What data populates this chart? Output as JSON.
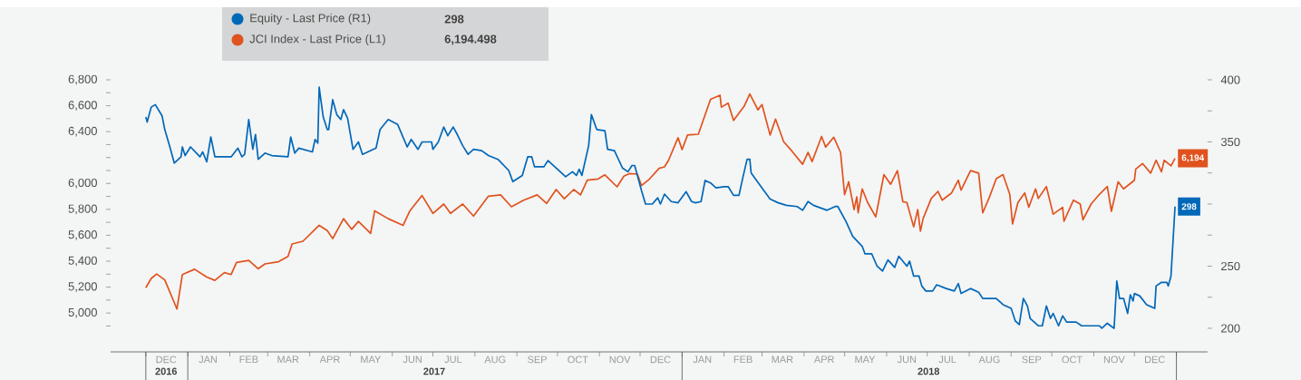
{
  "chart_data": {
    "type": "line",
    "xlim": [
      "2016-11-05",
      "2019-01-24"
    ],
    "xticks": [
      {
        "value": "2016-12-01",
        "label": null
      },
      {
        "value": "2017-01-01",
        "label": null
      },
      {
        "value": "2017-02-01",
        "label": null
      },
      {
        "value": "2017-03-01",
        "label": null
      },
      {
        "value": "2017-04-01",
        "label": null
      },
      {
        "value": "2017-05-01",
        "label": null
      },
      {
        "value": "2017-06-01",
        "label": null
      },
      {
        "value": "2017-07-01",
        "label": null
      },
      {
        "value": "2017-08-01",
        "label": null
      },
      {
        "value": "2017-09-01",
        "label": null
      },
      {
        "value": "2017-10-01",
        "label": null
      },
      {
        "value": "2017-11-01",
        "label": null
      },
      {
        "value": "2017-12-01",
        "label": null
      },
      {
        "value": "2018-01-01",
        "label": null
      },
      {
        "value": "2018-02-01",
        "label": null
      },
      {
        "value": "2018-03-01",
        "label": null
      },
      {
        "value": "2018-04-01",
        "label": null
      },
      {
        "value": "2018-05-01",
        "label": null
      },
      {
        "value": "2018-06-01",
        "label": null
      },
      {
        "value": "2018-07-01",
        "label": null
      },
      {
        "value": "2018-08-01",
        "label": null
      },
      {
        "value": "2018-09-01",
        "label": null
      },
      {
        "value": "2018-10-01",
        "label": null
      },
      {
        "value": "2018-11-01",
        "label": null
      },
      {
        "value": "2018-12-01",
        "label": null
      },
      {
        "value": "2019-01-01",
        "label": null
      },
      {
        "value": "2016-12-16",
        "label": "DEC"
      },
      {
        "value": "2017-01-16",
        "label": "JAN"
      },
      {
        "value": "2017-02-15",
        "label": "FEB"
      },
      {
        "value": "2017-03-16",
        "label": "MAR"
      },
      {
        "value": "2017-04-16",
        "label": "APR"
      },
      {
        "value": "2017-05-16",
        "label": "MAY"
      },
      {
        "value": "2017-06-16",
        "label": "JUN"
      },
      {
        "value": "2017-07-16",
        "label": "JUL"
      },
      {
        "value": "2017-08-16",
        "label": "AUG"
      },
      {
        "value": "2017-09-16",
        "label": "SEP"
      },
      {
        "value": "2017-10-16",
        "label": "OCT"
      },
      {
        "value": "2017-11-16",
        "label": "NOV"
      },
      {
        "value": "2017-12-16",
        "label": "DEC"
      },
      {
        "value": "2018-01-16",
        "label": "JAN"
      },
      {
        "value": "2018-02-15",
        "label": "FEB"
      },
      {
        "value": "2018-03-16",
        "label": "MAR"
      },
      {
        "value": "2018-04-16",
        "label": "APR"
      },
      {
        "value": "2018-05-16",
        "label": "MAY"
      },
      {
        "value": "2018-06-16",
        "label": "JUN"
      },
      {
        "value": "2018-07-16",
        "label": "JUL"
      },
      {
        "value": "2018-08-16",
        "label": "AUG"
      },
      {
        "value": "2018-09-16",
        "label": "SEP"
      },
      {
        "value": "2018-10-16",
        "label": "OCT"
      },
      {
        "value": "2018-11-16",
        "label": "NOV"
      },
      {
        "value": "2018-12-16",
        "label": "DEC"
      }
    ],
    "x2lim": [
      "2016-11-05",
      "2019-01-24"
    ],
    "x2ticks": [
      {
        "value": "2016-12-01",
        "label": null
      },
      {
        "value": "2017-01-01",
        "label": null
      },
      {
        "value": "2018-01-01",
        "label": null
      },
      {
        "value": "2019-01-01",
        "label": null
      },
      {
        "value": "2016-12-16",
        "label": "2016"
      },
      {
        "value": "2017-07-02",
        "label": "2017"
      },
      {
        "value": "2018-07-02",
        "label": "2018"
      }
    ],
    "ylim": [
      4700,
      6800
    ],
    "yticks": [
      {
        "value": 4900,
        "label": null
      },
      {
        "value": 5000,
        "label": "5,000"
      },
      {
        "value": 5100,
        "label": null
      },
      {
        "value": 5200,
        "label": "5,200"
      },
      {
        "value": 5300,
        "label": null
      },
      {
        "value": 5400,
        "label": "5,400"
      },
      {
        "value": 5500,
        "label": null
      },
      {
        "value": 5600,
        "label": "5,600"
      },
      {
        "value": 5700,
        "label": null
      },
      {
        "value": 5800,
        "label": "5,800"
      },
      {
        "value": 5900,
        "label": null
      },
      {
        "value": 6000,
        "label": "6,000"
      },
      {
        "value": 6100,
        "label": null
      },
      {
        "value": 6200,
        "label": null
      },
      {
        "value": 6300,
        "label": null
      },
      {
        "value": 6400,
        "label": "6,400"
      },
      {
        "value": 6500,
        "label": null
      },
      {
        "value": 6600,
        "label": "6,600"
      },
      {
        "value": 6700,
        "label": null
      },
      {
        "value": 6800,
        "label": "6,800"
      }
    ],
    "y2lim": [
      181,
      400
    ],
    "y2ticks": [
      200,
      {
        "value": 225,
        "label": null
      },
      250,
      {
        "value": 275,
        "label": null
      },
      {
        "value": 300,
        "label": null
      },
      {
        "value": 325,
        "label": null
      },
      350,
      {
        "value": 375,
        "label": null
      },
      400
    ],
    "legend": "top left",
    "marker": "none",
    "line_style": "solid",
    "grid": false,
    "annotations": [
      "298",
      "6,194.498"
    ],
    "series": [
      {
        "name": "Equity - Last Price (R1)",
        "color": "#0068b8",
        "axis": "y2",
        "x": [
          "2016-12-01",
          "2016-12-02",
          "2016-12-05",
          "2016-12-08",
          "2016-12-13",
          "2016-12-15",
          "2016-12-19",
          "2016-12-22",
          "2016-12-27",
          "2016-12-28",
          "2016-12-30",
          "2017-01-03",
          "2017-01-10",
          "2017-01-12",
          "2017-01-15",
          "2017-01-18",
          "2017-01-21",
          "2017-02-02",
          "2017-02-07",
          "2017-02-10",
          "2017-02-12",
          "2017-02-15",
          "2017-02-18",
          "2017-02-20",
          "2017-02-22",
          "2017-02-27",
          "2017-03-04",
          "2017-03-16",
          "2017-03-18",
          "2017-03-21",
          "2017-03-24",
          "2017-04-03",
          "2017-04-05",
          "2017-04-07",
          "2017-04-08",
          "2017-04-11",
          "2017-04-14",
          "2017-04-15",
          "2017-04-18",
          "2017-04-21",
          "2017-04-24",
          "2017-04-26",
          "2017-04-29",
          "2017-05-03",
          "2017-05-07",
          "2017-05-10",
          "2017-05-20",
          "2017-05-23",
          "2017-05-29",
          "2017-06-05",
          "2017-06-12",
          "2017-06-15",
          "2017-06-20",
          "2017-06-23",
          "2017-06-30",
          "2017-07-01",
          "2017-07-05",
          "2017-07-09",
          "2017-07-12",
          "2017-07-16",
          "2017-07-19",
          "2017-07-23",
          "2017-07-27",
          "2017-07-31",
          "2017-08-06",
          "2017-08-11",
          "2017-08-18",
          "2017-08-26",
          "2017-08-29",
          "2017-09-05",
          "2017-09-09",
          "2017-09-12",
          "2017-09-14",
          "2017-09-21",
          "2017-09-24",
          "2017-09-29",
          "2017-10-07",
          "2017-10-12",
          "2017-10-15",
          "2017-10-17",
          "2017-10-19",
          "2017-10-24",
          "2017-10-26",
          "2017-10-30",
          "2017-11-05",
          "2017-11-07",
          "2017-11-12",
          "2017-11-18",
          "2017-11-22",
          "2017-11-25",
          "2017-11-27",
          "2017-12-02",
          "2017-12-05",
          "2017-12-10",
          "2017-12-14",
          "2017-12-16",
          "2017-12-19",
          "2017-12-24",
          "2017-12-29",
          "2018-01-04",
          "2018-01-08",
          "2018-01-11",
          "2018-01-15",
          "2018-01-18",
          "2018-01-22",
          "2018-01-26",
          "2018-02-01",
          "2018-02-04",
          "2018-02-08",
          "2018-02-12",
          "2018-02-15",
          "2018-02-18",
          "2018-02-20",
          "2018-02-21",
          "2018-02-25",
          "2018-03-01",
          "2018-03-07",
          "2018-03-13",
          "2018-03-19",
          "2018-03-27",
          "2018-03-31",
          "2018-04-04",
          "2018-04-08",
          "2018-04-18",
          "2018-04-24",
          "2018-04-26",
          "2018-05-02",
          "2018-05-07",
          "2018-05-14",
          "2018-05-16",
          "2018-05-21",
          "2018-05-25",
          "2018-05-29",
          "2018-06-02",
          "2018-06-07",
          "2018-06-10",
          "2018-06-16",
          "2018-06-18",
          "2018-06-21",
          "2018-06-25",
          "2018-06-27",
          "2018-06-30",
          "2018-07-05",
          "2018-07-08",
          "2018-07-15",
          "2018-07-21",
          "2018-07-24",
          "2018-07-26",
          "2018-08-02",
          "2018-08-08",
          "2018-08-11",
          "2018-08-21",
          "2018-08-26",
          "2018-09-01",
          "2018-09-04",
          "2018-09-07",
          "2018-09-10",
          "2018-09-13",
          "2018-09-15",
          "2018-09-21",
          "2018-09-24",
          "2018-09-27",
          "2018-09-30",
          "2018-10-02",
          "2018-10-06",
          "2018-10-09",
          "2018-10-12",
          "2018-10-19",
          "2018-10-23",
          "2018-11-05",
          "2018-11-07",
          "2018-11-11",
          "2018-11-16",
          "2018-11-18",
          "2018-11-20",
          "2018-11-23",
          "2018-11-26",
          "2018-11-28",
          "2018-11-30",
          "2018-12-01",
          "2018-12-05",
          "2018-12-10",
          "2018-12-16",
          "2018-12-17",
          "2018-12-21",
          "2018-12-25",
          "2018-12-26",
          "2018-12-28",
          "2018-12-31"
        ],
        "values": [
          370,
          366,
          378,
          380,
          371,
          360,
          345,
          333,
          338,
          346,
          339,
          346,
          338,
          342,
          334,
          354,
          338,
          338,
          345,
          338,
          340,
          368,
          344,
          356,
          336,
          341,
          339,
          338,
          354,
          341,
          345,
          342,
          352,
          349,
          394,
          370,
          360,
          360,
          384,
          372,
          368,
          376,
          369,
          344,
          350,
          340,
          345,
          360,
          368,
          364,
          346,
          352,
          344,
          350,
          350,
          344,
          350,
          362,
          355,
          362,
          356,
          347,
          340,
          344,
          343,
          339,
          336,
          327,
          318,
          323,
          338,
          338,
          330,
          330,
          335,
          330,
          322,
          326,
          323,
          328,
          323,
          347,
          372,
          360,
          359,
          344,
          343,
          329,
          326,
          331,
          331,
          311,
          300,
          300,
          305,
          300,
          308,
          302,
          301,
          310,
          302,
          301,
          302,
          319,
          317,
          313,
          314,
          314,
          307,
          307,
          322,
          336,
          336,
          325,
          319,
          313,
          304,
          301,
          299,
          298,
          295,
          302,
          299,
          295,
          298,
          298,
          286,
          274,
          266,
          260,
          260,
          250,
          246,
          255,
          249,
          258,
          250,
          254,
          242,
          242,
          234,
          230,
          230,
          235,
          232,
          230,
          236,
          228,
          232,
          229,
          224,
          224,
          219,
          216,
          206,
          203,
          224,
          218,
          208,
          202,
          202,
          218,
          208,
          212,
          202,
          210,
          205,
          205,
          202,
          202,
          200,
          204,
          200,
          238,
          224,
          224,
          212,
          227,
          222,
          228,
          226,
          219,
          216,
          234,
          237,
          237,
          234,
          242,
          298
        ],
        "value_labels": [
          null,
          null,
          null,
          null,
          null,
          null,
          null,
          null,
          null,
          null,
          null,
          null,
          null,
          null,
          null,
          null,
          null,
          null,
          null,
          null,
          null,
          null,
          null,
          null,
          null,
          null,
          null,
          null,
          null,
          null,
          null,
          null,
          null,
          null,
          null,
          null,
          null,
          null,
          null,
          null,
          null,
          null,
          null,
          null,
          null,
          null,
          null,
          null,
          null,
          null,
          null,
          null,
          null,
          null,
          null,
          null,
          null,
          null,
          null,
          null,
          null,
          null,
          null,
          null,
          null,
          null,
          null,
          null,
          null,
          null,
          null,
          null,
          null,
          null,
          null,
          null,
          null,
          null,
          null,
          null,
          null,
          null,
          null,
          null,
          null,
          null,
          null,
          null,
          null,
          null,
          null,
          null,
          null,
          null,
          null,
          null,
          null,
          null,
          null,
          null,
          null,
          null,
          null,
          null,
          null,
          null,
          null,
          null,
          null,
          null,
          null,
          null,
          null,
          null,
          null,
          null,
          null,
          null,
          null,
          null,
          null,
          null,
          null,
          null,
          null,
          null,
          null,
          null,
          null,
          null,
          null,
          null,
          null,
          null,
          null,
          null,
          null,
          null,
          null,
          null,
          null,
          null,
          null,
          null,
          null,
          null,
          null,
          null,
          null,
          null,
          null,
          null,
          null,
          null,
          null,
          null,
          null,
          null,
          null,
          null,
          null,
          null,
          null,
          null,
          null,
          null,
          null,
          null,
          null,
          null,
          null,
          null,
          null,
          null,
          null,
          null,
          null,
          null,
          null,
          null,
          null,
          null,
          null,
          null,
          null,
          null,
          null,
          null,
          "298"
        ]
      },
      {
        "name": "JCI Index - Last Price (L1)",
        "color": "#e0531f",
        "x": [
          "2016-12-01",
          "2016-12-05",
          "2016-12-09",
          "2016-12-15",
          "2016-12-24",
          "2016-12-28",
          "2017-01-06",
          "2017-01-15",
          "2017-01-21",
          "2017-01-28",
          "2017-02-02",
          "2017-02-06",
          "2017-02-15",
          "2017-02-22",
          "2017-02-27",
          "2017-03-09",
          "2017-03-16",
          "2017-03-19",
          "2017-03-27",
          "2017-04-08",
          "2017-04-14",
          "2017-04-18",
          "2017-04-26",
          "2017-05-02",
          "2017-05-07",
          "2017-05-16",
          "2017-05-19",
          "2017-05-29",
          "2017-06-09",
          "2017-06-14",
          "2017-06-23",
          "2017-07-01",
          "2017-07-09",
          "2017-07-14",
          "2017-07-23",
          "2017-07-31",
          "2017-08-11",
          "2017-08-20",
          "2017-08-28",
          "2017-09-06",
          "2017-09-16",
          "2017-09-23",
          "2017-09-30",
          "2017-10-06",
          "2017-10-13",
          "2017-10-18",
          "2017-10-23",
          "2017-10-31",
          "2017-11-05",
          "2017-11-14",
          "2017-11-19",
          "2017-11-23",
          "2017-11-29",
          "2017-12-02",
          "2017-12-08",
          "2017-12-15",
          "2017-12-19",
          "2017-12-22",
          "2017-12-29",
          "2018-01-01",
          "2018-01-05",
          "2018-01-13",
          "2018-01-22",
          "2018-01-29",
          "2018-01-30",
          "2018-02-04",
          "2018-02-08",
          "2018-02-16",
          "2018-02-20",
          "2018-02-26",
          "2018-03-01",
          "2018-03-07",
          "2018-03-11",
          "2018-03-17",
          "2018-03-23",
          "2018-03-31",
          "2018-04-04",
          "2018-04-07",
          "2018-04-14",
          "2018-04-17",
          "2018-04-23",
          "2018-04-28",
          "2018-05-01",
          "2018-05-04",
          "2018-05-08",
          "2018-05-10",
          "2018-05-11",
          "2018-05-14",
          "2018-05-18",
          "2018-05-24",
          "2018-05-28",
          "2018-05-30",
          "2018-06-04",
          "2018-06-09",
          "2018-06-13",
          "2018-06-16",
          "2018-06-21",
          "2018-06-24",
          "2018-06-26",
          "2018-06-28",
          "2018-07-04",
          "2018-07-09",
          "2018-07-12",
          "2018-07-19",
          "2018-07-24",
          "2018-07-26",
          "2018-08-02",
          "2018-08-08",
          "2018-08-11",
          "2018-08-16",
          "2018-08-21",
          "2018-08-26",
          "2018-08-31",
          "2018-09-02",
          "2018-09-06",
          "2018-09-11",
          "2018-09-14",
          "2018-09-19",
          "2018-09-21",
          "2018-09-27",
          "2018-10-02",
          "2018-10-09",
          "2018-10-10",
          "2018-10-17",
          "2018-10-22",
          "2018-10-24",
          "2018-10-30",
          "2018-11-05",
          "2018-11-11",
          "2018-11-14",
          "2018-11-19",
          "2018-11-23",
          "2018-12-01",
          "2018-12-02",
          "2018-12-07",
          "2018-12-13",
          "2018-12-17",
          "2018-12-21",
          "2018-12-23",
          "2018-12-28",
          "2018-12-31"
        ],
        "values": [
          5195,
          5267,
          5301,
          5256,
          5031,
          5297,
          5338,
          5277,
          5252,
          5312,
          5297,
          5390,
          5406,
          5342,
          5379,
          5396,
          5437,
          5533,
          5554,
          5677,
          5636,
          5574,
          5728,
          5646,
          5707,
          5615,
          5789,
          5728,
          5677,
          5789,
          5907,
          5769,
          5841,
          5769,
          5841,
          5748,
          5902,
          5912,
          5820,
          5871,
          5912,
          5846,
          5953,
          5882,
          5953,
          5912,
          6025,
          6035,
          6066,
          5974,
          6056,
          6076,
          6072,
          5984,
          6035,
          6117,
          6128,
          6179,
          6353,
          6261,
          6374,
          6380,
          6650,
          6681,
          6589,
          6620,
          6486,
          6599,
          6691,
          6568,
          6609,
          6374,
          6497,
          6322,
          6251,
          6148,
          6240,
          6169,
          6363,
          6281,
          6357,
          6240,
          5914,
          6013,
          5798,
          5896,
          5773,
          5958,
          5853,
          5742,
          5958,
          6068,
          5994,
          6099,
          5859,
          5853,
          5665,
          5798,
          5632,
          5730,
          5884,
          5939,
          5871,
          5927,
          6025,
          5948,
          6099,
          6080,
          5773,
          5896,
          6037,
          6068,
          5914,
          5687,
          5853,
          5927,
          5816,
          5958,
          5884,
          5976,
          5763,
          5816,
          5708,
          5871,
          5841,
          5719,
          5841,
          5914,
          5976,
          5785,
          6013,
          5958,
          6025,
          6111,
          6154,
          6080,
          6179,
          6090,
          6179,
          6136,
          6194
        ],
        "value_labels": [
          null,
          null,
          null,
          null,
          null,
          null,
          null,
          null,
          null,
          null,
          null,
          null,
          null,
          null,
          null,
          null,
          null,
          null,
          null,
          null,
          null,
          null,
          null,
          null,
          null,
          null,
          null,
          null,
          null,
          null,
          null,
          null,
          null,
          null,
          null,
          null,
          null,
          null,
          null,
          null,
          null,
          null,
          null,
          null,
          null,
          null,
          null,
          null,
          null,
          null,
          null,
          null,
          null,
          null,
          null,
          null,
          null,
          null,
          null,
          null,
          null,
          null,
          null,
          null,
          null,
          null,
          null,
          null,
          null,
          null,
          null,
          null,
          null,
          null,
          null,
          null,
          null,
          null,
          null,
          null,
          null,
          null,
          null,
          null,
          null,
          null,
          null,
          null,
          null,
          null,
          null,
          null,
          null,
          null,
          null,
          null,
          null,
          null,
          null,
          null,
          null,
          null,
          null,
          null,
          null,
          null,
          null,
          null,
          null,
          null,
          null,
          null,
          null,
          null,
          null,
          null,
          null,
          null,
          null,
          null,
          null,
          null,
          null,
          null,
          null,
          null,
          null,
          null,
          null,
          null,
          null,
          null,
          null,
          null,
          null,
          null,
          null,
          null,
          null,
          null,
          "6,194"
        ]
      }
    ]
  }
}
